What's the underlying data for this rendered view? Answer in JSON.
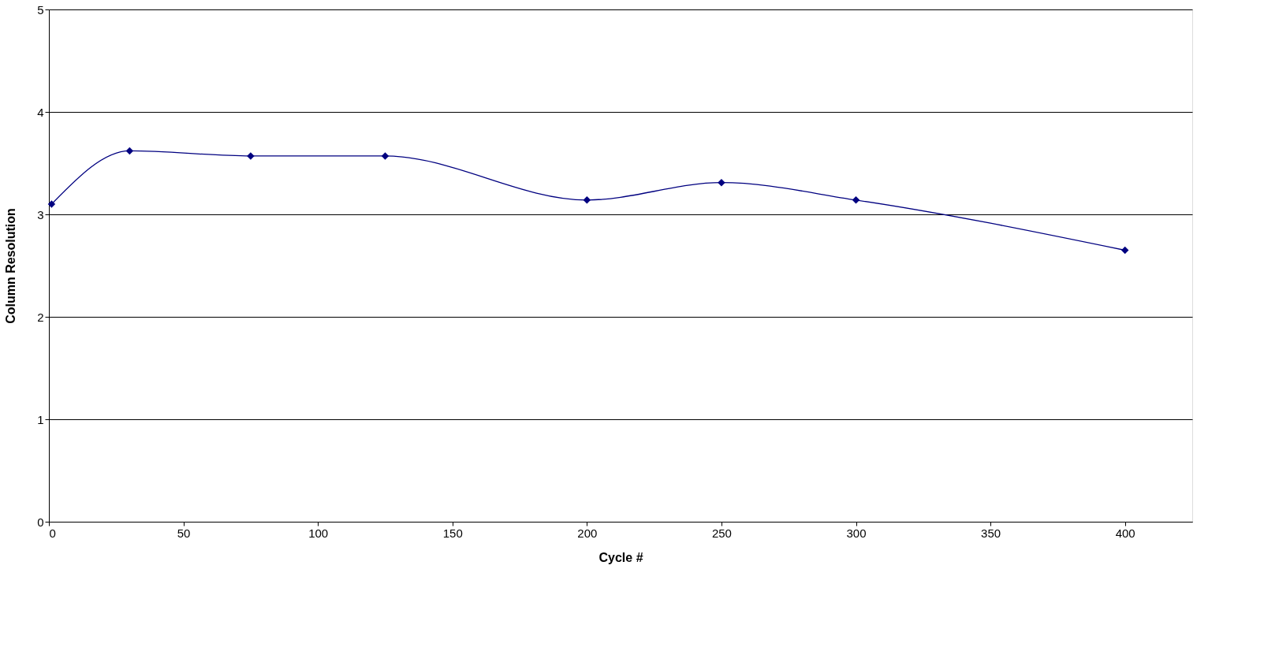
{
  "chart_data": {
    "type": "line",
    "xlabel": "Cycle #",
    "ylabel": "Column Resolution",
    "x": [
      1,
      30,
      75,
      125,
      200,
      250,
      300,
      400
    ],
    "series": [
      {
        "color": "#000080",
        "values": [
          3.1,
          3.62,
          3.57,
          3.57,
          3.14,
          3.31,
          3.14,
          2.65
        ]
      }
    ],
    "xlim": [
      0,
      425
    ],
    "xticks": [
      0,
      50,
      100,
      150,
      200,
      250,
      300,
      350,
      400
    ],
    "ylim": [
      0,
      5
    ],
    "yticks": [
      0,
      1,
      2,
      3,
      4,
      5
    ],
    "grid": "y",
    "marker": "diamond",
    "line_style": "solid"
  }
}
